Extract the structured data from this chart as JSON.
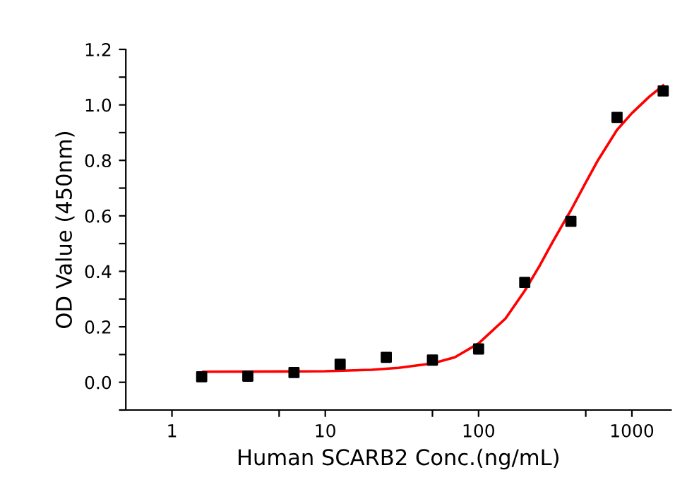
{
  "chart_data": {
    "type": "scatter",
    "xlabel": "Human SCARB2 Conc.(ng/mL)",
    "ylabel": "OD Value (450nm)",
    "log": "x",
    "xlim": [
      0.5,
      1800
    ],
    "ylim": [
      -0.1,
      1.2
    ],
    "xticks": [
      1,
      {
        "value": 5,
        "label": null
      },
      10,
      {
        "value": 50,
        "label": null
      },
      100,
      {
        "value": 500,
        "label": null
      },
      1000
    ],
    "yticks": [
      {
        "value": -0.1,
        "label": null
      },
      {
        "value": 0,
        "label": "0.0"
      },
      {
        "value": 0.1,
        "label": null
      },
      0.2,
      {
        "value": 0.3,
        "label": null
      },
      0.4,
      {
        "value": 0.5,
        "label": null
      },
      0.6,
      {
        "value": 0.7,
        "label": null
      },
      0.8,
      {
        "value": 0.9,
        "label": null
      },
      {
        "value": 1.0,
        "label": "1.0"
      },
      {
        "value": 1.1,
        "label": null
      },
      1.2
    ],
    "grid": false,
    "legend": false,
    "series": [
      {
        "marker": "square",
        "color": "#000000",
        "x": [
          1.5625,
          3.125,
          6.25,
          12.5,
          25,
          50,
          100,
          200,
          400,
          800,
          1600
        ],
        "values": [
          0.02,
          0.022,
          0.035,
          0.065,
          0.09,
          0.08,
          0.12,
          0.36,
          0.58,
          0.955,
          1.05
        ]
      },
      {
        "type": "line",
        "marker": "none",
        "line_style": "solid",
        "color": "#ff0000",
        "x": [
          1.6,
          5,
          10,
          20,
          30,
          50,
          70,
          100,
          150,
          200,
          250,
          300,
          350,
          400,
          500,
          600,
          800,
          1000,
          1300,
          1600
        ],
        "values": [
          0.038,
          0.039,
          0.04,
          0.045,
          0.052,
          0.068,
          0.09,
          0.14,
          0.23,
          0.33,
          0.42,
          0.5,
          0.565,
          0.62,
          0.72,
          0.8,
          0.91,
          0.97,
          1.03,
          1.07
        ]
      }
    ]
  }
}
